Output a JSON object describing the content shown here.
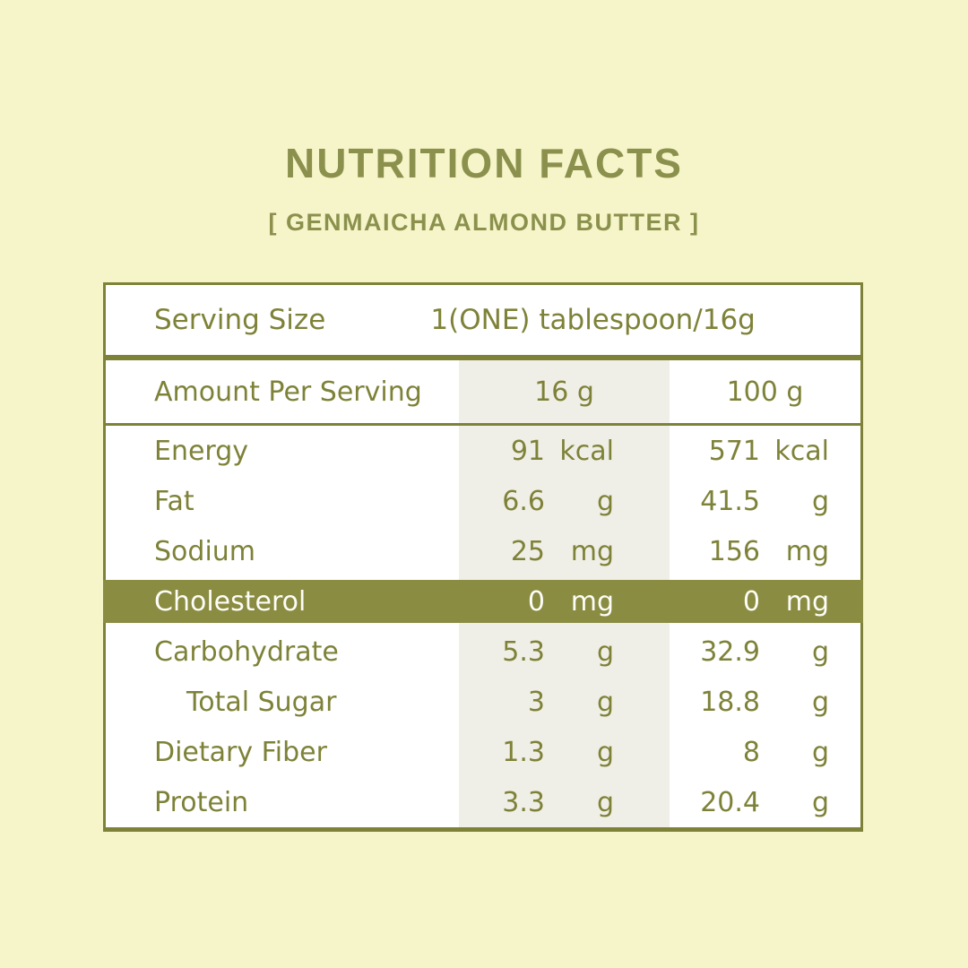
{
  "colors": {
    "bg": "#f6f5c9",
    "olive": "#7e8238",
    "olive-title": "#8b914d",
    "olive-band": "#8a8c42",
    "shade": "#f0efe7",
    "band-text": "#fdfdf8"
  },
  "header": {
    "title": "NUTRITION FACTS",
    "subtitle": "[ GENMAICHA ALMOND BUTTER ]"
  },
  "table": {
    "serving": {
      "label": "Serving Size",
      "value": "1(ONE) tablespoon/16g"
    },
    "amount_header": {
      "label": "Amount Per Serving",
      "per_serving": "16 g",
      "per_100g": "100 g"
    },
    "rows": [
      {
        "label": "Energy",
        "per_serving_value": "91",
        "per_serving_unit": "kcal",
        "per_100g_value": "571",
        "per_100g_unit": "kcal",
        "highlight": false,
        "indent": false
      },
      {
        "label": "Fat",
        "per_serving_value": "6.6",
        "per_serving_unit": "g",
        "per_100g_value": "41.5",
        "per_100g_unit": "g",
        "highlight": false,
        "indent": false
      },
      {
        "label": "Sodium",
        "per_serving_value": "25",
        "per_serving_unit": "mg",
        "per_100g_value": "156",
        "per_100g_unit": "mg",
        "highlight": false,
        "indent": false
      },
      {
        "label": "Cholesterol",
        "per_serving_value": "0",
        "per_serving_unit": "mg",
        "per_100g_value": "0",
        "per_100g_unit": "mg",
        "highlight": true,
        "indent": false
      },
      {
        "label": "Carbohydrate",
        "per_serving_value": "5.3",
        "per_serving_unit": "g",
        "per_100g_value": "32.9",
        "per_100g_unit": "g",
        "highlight": false,
        "indent": false
      },
      {
        "label": "Total Sugar",
        "per_serving_value": "3",
        "per_serving_unit": "g",
        "per_100g_value": "18.8",
        "per_100g_unit": "g",
        "highlight": false,
        "indent": true
      },
      {
        "label": "Dietary Fiber",
        "per_serving_value": "1.3",
        "per_serving_unit": "g",
        "per_100g_value": "8",
        "per_100g_unit": "g",
        "highlight": false,
        "indent": false
      },
      {
        "label": "Protein",
        "per_serving_value": "3.3",
        "per_serving_unit": "g",
        "per_100g_value": "20.4",
        "per_100g_unit": "g",
        "highlight": false,
        "indent": false
      }
    ]
  }
}
